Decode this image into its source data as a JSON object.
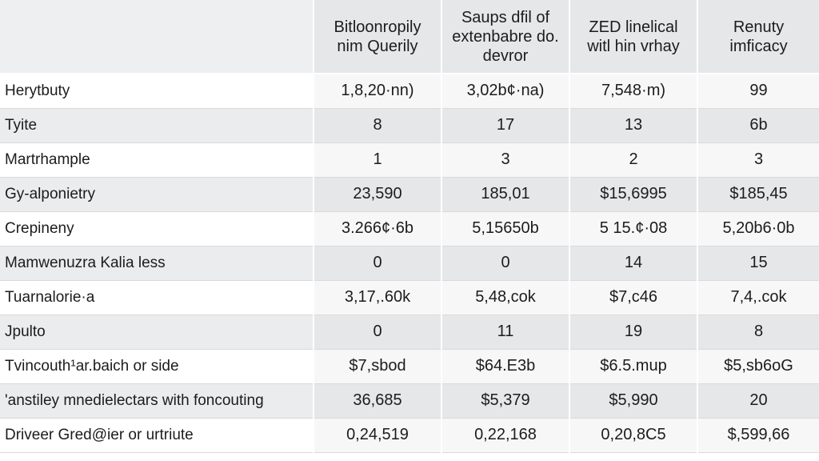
{
  "table": {
    "columns": [
      "",
      [
        "Bitloonropily",
        "nim Querily"
      ],
      [
        "Saups dfil of",
        "extenbabre do.",
        "devror"
      ],
      [
        "ZED linelical",
        "witl hin vrhay"
      ],
      [
        "Renuty",
        "imficacy"
      ]
    ],
    "rows": [
      {
        "label": "Herytbuty",
        "values": [
          "1,8,20·nn)",
          "3,02b¢·na)",
          "7,548·m)",
          "99"
        ]
      },
      {
        "label": "Tyite",
        "values": [
          "8",
          "17",
          "13",
          "6b"
        ]
      },
      {
        "label": "Martrhample",
        "values": [
          "1",
          "3",
          "2",
          "3"
        ]
      },
      {
        "label": "Gy-alponietry",
        "values": [
          "23,590",
          "185,01",
          "$15,6995",
          "$185,45"
        ]
      },
      {
        "label": "Crepineny",
        "values": [
          "3.266¢·6b",
          "5,15650b",
          "5 15.¢·08",
          "5,20b6·0b"
        ]
      },
      {
        "label": "Mamwenuzra Kalia less",
        "values": [
          "0",
          "0",
          "14",
          "15"
        ]
      },
      {
        "label": "Tuarnalorie·a",
        "values": [
          "3,17,.60k",
          "5,48,cok",
          "$7,c46",
          "7,4,.cok"
        ]
      },
      {
        "label": "Jpulto",
        "values": [
          "0",
          "11",
          "19",
          "8"
        ]
      },
      {
        "label": "Tvincouth¹ar.baich or side",
        "values": [
          "$7,sbod",
          "$64.E3b",
          "$6.5.mup",
          "$5,sb6oG"
        ]
      },
      {
        "label": "'anstiley mnedielectars with foncouting",
        "values": [
          "36,685",
          "$5,379",
          "$5,990",
          "20"
        ]
      },
      {
        "label": "Driveer Gred@ier or urtriute",
        "values": [
          "0,24,519",
          "0,22,168",
          "0,20,8C5",
          "$,599,66"
        ]
      }
    ]
  }
}
